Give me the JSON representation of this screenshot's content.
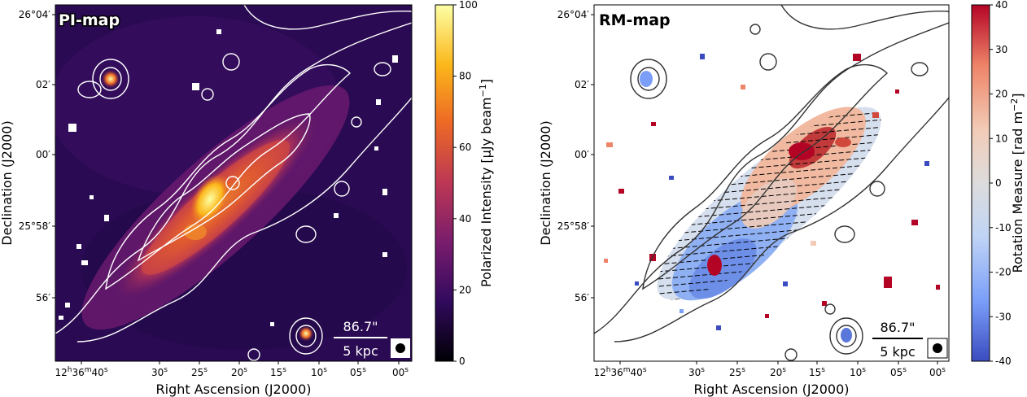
{
  "chart_data": [
    {
      "type": "heatmap",
      "title": "PI-map",
      "xlabel": "Right Ascension (J2000)",
      "ylabel": "Declination (J2000)",
      "x_ticks": [
        {
          "h": "12",
          "m": "36",
          "s": "40"
        },
        {
          "s": "30"
        },
        {
          "s": "25"
        },
        {
          "s": "20"
        },
        {
          "s": "15"
        },
        {
          "s": "10"
        },
        {
          "s": "05"
        },
        {
          "s": "00"
        }
      ],
      "y_ticks": [
        {
          "d": "26",
          "m": "04"
        },
        {
          "m": "02"
        },
        {
          "m": "00"
        },
        {
          "d": "25",
          "m": "58"
        },
        {
          "m": "56"
        }
      ],
      "colorbar": {
        "label": "Polarized Intensity [μJy beam",
        "label_sup": "−1",
        "label_end": "]",
        "ticks": [
          0,
          20,
          40,
          60,
          80,
          100
        ],
        "range": [
          0,
          100
        ],
        "colormap": "inferno",
        "colors": [
          "#000004",
          "#320a5e",
          "#781c6d",
          "#bc3754",
          "#ed6925",
          "#fbb61a",
          "#fcffa4"
        ]
      },
      "scalebar": {
        "angular": "86.7\"",
        "physical": "5 kpc"
      },
      "contour_color": "#ffffff"
    },
    {
      "type": "heatmap",
      "title": "RM-map",
      "xlabel": "Right Ascension (J2000)",
      "ylabel": "Declination (J2000)",
      "x_ticks": [
        {
          "h": "12",
          "m": "36",
          "s": "40"
        },
        {
          "s": "30"
        },
        {
          "s": "25"
        },
        {
          "s": "20"
        },
        {
          "s": "15"
        },
        {
          "s": "10"
        },
        {
          "s": "05"
        },
        {
          "s": "00"
        }
      ],
      "y_ticks": [
        {
          "d": "26",
          "m": "04"
        },
        {
          "m": "02"
        },
        {
          "m": "00"
        },
        {
          "d": "25",
          "m": "58"
        },
        {
          "m": "56"
        }
      ],
      "colorbar": {
        "label": "Rotation Measure [rad m",
        "label_sup": "−2",
        "label_end": "]",
        "ticks": [
          -40,
          -30,
          -20,
          -10,
          0,
          10,
          20,
          30,
          40
        ],
        "range": [
          -40,
          40
        ],
        "colormap": "coolwarm",
        "colors": [
          "#3b4cc0",
          "#7b9ff9",
          "#c0d4f5",
          "#dddcdc",
          "#f2cbb7",
          "#ee8468",
          "#b40426"
        ]
      },
      "scalebar": {
        "angular": "86.7\"",
        "physical": "5 kpc"
      },
      "contour_color": "#333333"
    }
  ]
}
